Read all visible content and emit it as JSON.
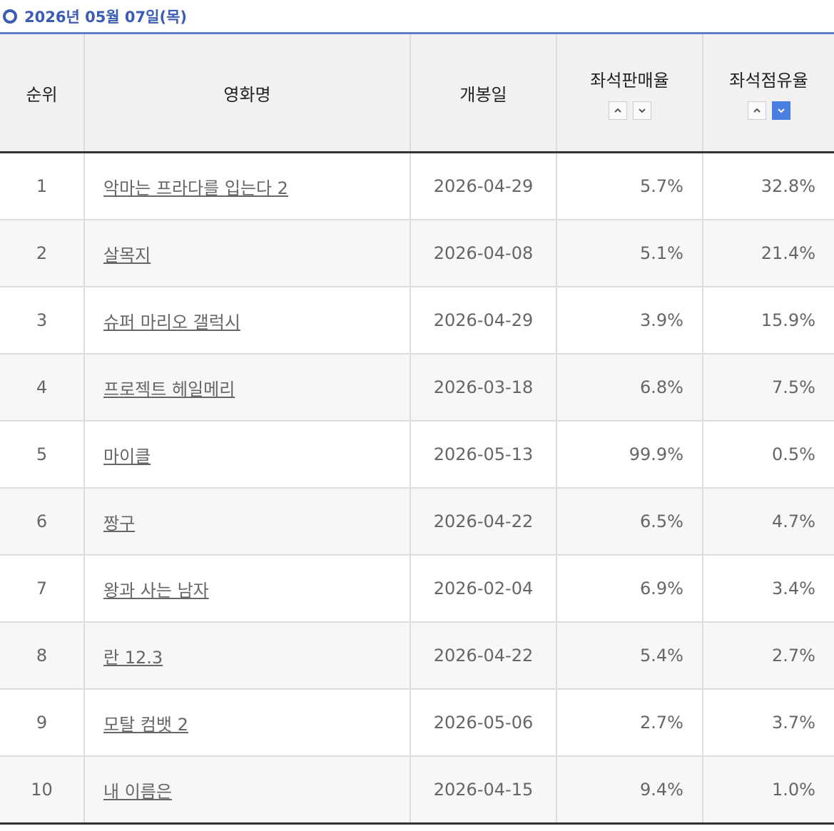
{
  "header": {
    "title": "2026년 05월 07일(목)"
  },
  "table": {
    "columns": [
      "순위",
      "영화명",
      "개봉일",
      "좌석판매율",
      "좌석점유율"
    ],
    "rows": [
      [
        "1",
        "악마는 프라다를 입는다 2",
        "2026-04-29",
        "5.7%",
        "32.8%"
      ],
      [
        "2",
        "살목지",
        "2026-04-08",
        "5.1%",
        "21.4%"
      ],
      [
        "3",
        "슈퍼 마리오 갤럭시",
        "2026-04-29",
        "3.9%",
        "15.9%"
      ],
      [
        "4",
        "프로젝트 헤일메리",
        "2026-03-18",
        "6.8%",
        "7.5%"
      ],
      [
        "5",
        "마이클",
        "2026-05-13",
        "99.9%",
        "0.5%"
      ],
      [
        "6",
        "짱구",
        "2026-04-22",
        "6.5%",
        "4.7%"
      ],
      [
        "7",
        "왕과 사는 남자",
        "2026-02-04",
        "6.9%",
        "3.4%"
      ],
      [
        "8",
        "란 12.3",
        "2026-04-22",
        "5.4%",
        "2.7%"
      ],
      [
        "9",
        "모탈 컴뱃 2",
        "2026-05-06",
        "2.7%",
        "3.7%"
      ],
      [
        "10",
        "내 이름은",
        "2026-04-15",
        "9.4%",
        "1.0%"
      ]
    ]
  }
}
